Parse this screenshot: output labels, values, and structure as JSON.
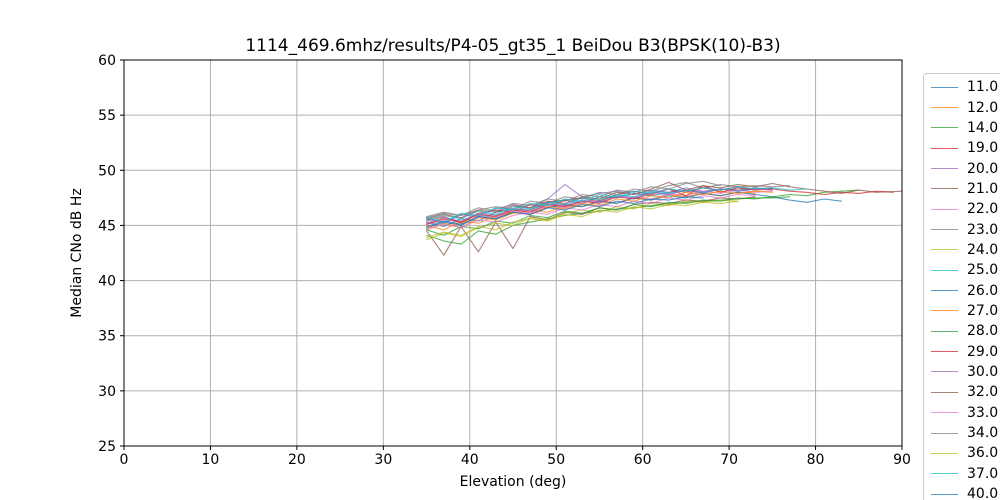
{
  "title": "1114_469.6mhz/results/P4-05_gt35_1 BeiDou B3(BPSK(10)-B3)",
  "chart_data": {
    "type": "line",
    "title": "1114_469.6mhz/results/P4-05_gt35_1 BeiDou B3(BPSK(10)-B3)",
    "xlabel": "Elevation (deg)",
    "ylabel": "Median CNo dB Hz",
    "xlim": [
      0,
      90
    ],
    "ylim": [
      25,
      60
    ],
    "xticks": [
      0,
      10,
      20,
      30,
      40,
      50,
      60,
      70,
      80,
      90
    ],
    "yticks": [
      25,
      30,
      35,
      40,
      45,
      50,
      55,
      60
    ],
    "grid": true,
    "grid_color": "#b0b0b0",
    "legend_position": "outside-right",
    "series": [
      {
        "name": "11.0",
        "color": "#1f77b4",
        "x0": 35,
        "dx": 2,
        "values": [
          45.3,
          44.9,
          45.6,
          45.4,
          46.2,
          46.5,
          46.4,
          47.1,
          47.3,
          47.0,
          47.6,
          47.5,
          47.9,
          47.7,
          48.0,
          48.2,
          47.9,
          48.3,
          48.2,
          48.4,
          48.3
        ]
      },
      {
        "name": "12.0",
        "color": "#ff7f0e",
        "x0": 35,
        "dx": 2,
        "values": [
          44.6,
          45.2,
          44.8,
          45.7,
          45.5,
          46.1,
          46.4,
          46.2,
          46.8,
          46.7,
          47.2,
          47.0,
          47.5,
          47.3,
          47.8,
          47.6,
          47.9,
          47.7,
          48.0,
          47.9
        ]
      },
      {
        "name": "14.0",
        "color": "#2ca02c",
        "x0": 35,
        "dx": 2,
        "values": [
          44.1,
          43.6,
          43.3,
          44.5,
          44.2,
          45.0,
          45.3,
          45.6,
          45.9,
          46.1,
          46.3,
          46.5,
          46.6,
          46.8,
          46.9,
          47.1,
          47.2,
          47.3,
          47.4,
          47.5,
          47.5,
          47.6
        ]
      },
      {
        "name": "19.0",
        "color": "#d62728",
        "x0": 35,
        "dx": 2,
        "values": [
          45.4,
          45.8,
          45.2,
          46.1,
          46.4,
          46.2,
          46.9,
          46.6,
          47.3,
          47.5,
          47.2,
          47.8,
          48.1,
          47.8,
          48.3,
          48.0,
          48.4,
          48.2,
          48.5,
          48.3,
          48.4
        ]
      },
      {
        "name": "20.0",
        "color": "#9467bd",
        "x0": 35,
        "dx": 2,
        "values": [
          45.6,
          45.2,
          46.0,
          45.8,
          46.5,
          46.9,
          46.6,
          47.4,
          48.7,
          47.6,
          47.9,
          48.1,
          47.8,
          48.2,
          48.0,
          48.4,
          48.1,
          48.3,
          48.2
        ]
      },
      {
        "name": "21.0",
        "color": "#8c564b",
        "x0": 35,
        "dx": 2,
        "values": [
          44.5,
          42.3,
          44.9,
          42.6,
          45.3,
          42.9,
          45.8,
          45.5,
          46.2,
          46.0,
          46.6,
          46.4,
          46.9,
          47.1,
          47.0,
          47.3,
          47.2,
          47.5,
          47.4,
          47.6
        ]
      },
      {
        "name": "22.0",
        "color": "#e377c2",
        "x0": 35,
        "dx": 2,
        "values": [
          45.1,
          45.5,
          45.0,
          45.9,
          45.7,
          46.3,
          46.1,
          46.8,
          46.6,
          47.1,
          47.3,
          47.0,
          47.6,
          47.4,
          47.9,
          47.7,
          48.1,
          47.9,
          48.2,
          48.0,
          48.1
        ]
      },
      {
        "name": "23.0",
        "color": "#7f7f7f",
        "x0": 35,
        "dx": 2,
        "values": [
          45.7,
          46.1,
          45.9,
          46.4,
          46.7,
          46.5,
          47.2,
          47.0,
          47.6,
          47.4,
          48.0,
          47.8,
          48.3,
          48.1,
          48.6,
          48.9,
          48.4,
          48.7,
          48.5,
          48.6,
          48.5,
          48.6
        ]
      },
      {
        "name": "24.0",
        "color": "#bcbd22",
        "x0": 35,
        "dx": 2,
        "values": [
          43.7,
          44.3,
          44.0,
          44.8,
          45.2,
          45.0,
          45.7,
          45.5,
          46.1,
          46.4,
          46.2,
          46.7,
          46.5,
          47.0,
          46.8,
          47.2,
          47.1,
          47.3,
          47.2
        ]
      },
      {
        "name": "25.0",
        "color": "#17becf",
        "x0": 35,
        "dx": 2,
        "values": [
          45.5,
          45.9,
          45.6,
          46.3,
          46.0,
          46.7,
          46.5,
          47.1,
          46.9,
          47.5,
          47.3,
          47.8,
          47.6,
          48.1,
          47.9,
          48.2,
          48.0,
          48.3,
          48.1,
          48.3
        ]
      },
      {
        "name": "26.0",
        "color": "#1f77b4",
        "x0": 35,
        "dx": 2,
        "values": [
          44.8,
          45.3,
          45.0,
          45.8,
          45.6,
          46.2,
          46.0,
          46.6,
          46.9,
          46.7,
          47.2,
          47.0,
          47.5,
          47.3,
          47.7,
          47.5,
          47.9,
          47.7,
          48.0,
          47.8,
          47.6,
          47.3,
          47.1,
          47.4,
          47.2
        ]
      },
      {
        "name": "27.0",
        "color": "#ff7f0e",
        "x0": 35,
        "dx": 2,
        "values": [
          45.0,
          44.6,
          45.4,
          45.2,
          45.9,
          46.2,
          46.0,
          46.7,
          46.5,
          47.0,
          46.8,
          47.4,
          47.2,
          47.7,
          47.5,
          48.0,
          47.8,
          48.1,
          47.9,
          48.1,
          48.0
        ]
      },
      {
        "name": "28.0",
        "color": "#2ca02c",
        "x0": 35,
        "dx": 2,
        "values": [
          44.6,
          44.1,
          44.9,
          44.7,
          45.4,
          45.2,
          45.9,
          45.7,
          46.3,
          46.1,
          46.6,
          46.4,
          46.9,
          46.7,
          47.1,
          47.0,
          47.3,
          47.2,
          47.5,
          47.4,
          47.6,
          47.8,
          47.7,
          48.0,
          48.1,
          48.2
        ]
      },
      {
        "name": "29.0",
        "color": "#d62728",
        "x0": 35,
        "dx": 2,
        "values": [
          45.1,
          45.6,
          45.3,
          46.0,
          45.8,
          46.4,
          46.2,
          46.9,
          46.7,
          47.2,
          47.0,
          47.6,
          47.4,
          47.9,
          48.3,
          47.7,
          48.6,
          48.0,
          48.4,
          48.2,
          48.3,
          48.1,
          48.0,
          47.8,
          48.0,
          47.9,
          48.1,
          48.0
        ]
      },
      {
        "name": "30.0",
        "color": "#9467bd",
        "x0": 35,
        "dx": 2,
        "values": [
          45.2,
          45.7,
          45.4,
          46.1,
          45.9,
          46.5,
          46.3,
          47.0,
          46.8,
          47.3,
          47.1,
          47.7,
          47.5,
          48.0,
          47.8,
          48.2,
          48.0,
          48.3,
          48.1,
          48.3,
          48.2
        ]
      },
      {
        "name": "32.0",
        "color": "#8c564b",
        "x0": 35,
        "dx": 2,
        "last_x": 90,
        "values": [
          45.6,
          46.0,
          45.7,
          46.4,
          46.2,
          46.8,
          46.6,
          47.2,
          47.0,
          47.6,
          47.4,
          48.0,
          47.8,
          48.3,
          48.9,
          48.2,
          48.6,
          48.4,
          48.7,
          48.5,
          48.8,
          48.5,
          48.3,
          48.1,
          47.9,
          48.2,
          48.0,
          48.1
        ]
      },
      {
        "name": "33.0",
        "color": "#e377c2",
        "x0": 35,
        "dx": 2,
        "values": [
          44.7,
          45.1,
          44.8,
          45.5,
          45.3,
          45.9,
          46.2,
          46.0,
          46.6,
          46.4,
          46.9,
          46.7,
          47.2,
          47.0,
          47.5,
          47.3,
          47.7,
          47.5,
          47.8,
          47.7
        ]
      },
      {
        "name": "34.0",
        "color": "#7f7f7f",
        "x0": 35,
        "dx": 2,
        "values": [
          45.8,
          46.2,
          45.9,
          46.6,
          46.3,
          47.0,
          46.8,
          47.4,
          47.2,
          47.8,
          47.6,
          48.2,
          48.0,
          48.5,
          48.3,
          48.8,
          49.0,
          48.6
        ]
      },
      {
        "name": "36.0",
        "color": "#bcbd22",
        "x0": 35,
        "dx": 2,
        "values": [
          43.9,
          44.4,
          44.1,
          44.9,
          44.6,
          45.3,
          45.6,
          45.4,
          46.0,
          45.8,
          46.4,
          46.2,
          46.7,
          46.5,
          46.9,
          46.8,
          47.1,
          47.0,
          47.2
        ]
      },
      {
        "name": "37.0",
        "color": "#17becf",
        "x0": 35,
        "dx": 2,
        "values": [
          45.7,
          45.3,
          46.1,
          45.9,
          46.6,
          46.4,
          47.0,
          46.8,
          47.4,
          47.2,
          47.8,
          47.6,
          48.1,
          47.9,
          48.3,
          48.1,
          48.4,
          48.2,
          48.5,
          48.3,
          48.4,
          48.2,
          48.3
        ]
      },
      {
        "name": "40.0",
        "color": "#1f77b4",
        "x0": 35,
        "dx": 2,
        "values": [
          44.9,
          45.4,
          45.1,
          45.8,
          45.6,
          46.2,
          46.0,
          46.6,
          46.4,
          46.9,
          46.7,
          47.2,
          47.0,
          47.4,
          47.3,
          47.6,
          47.5
        ]
      }
    ]
  }
}
